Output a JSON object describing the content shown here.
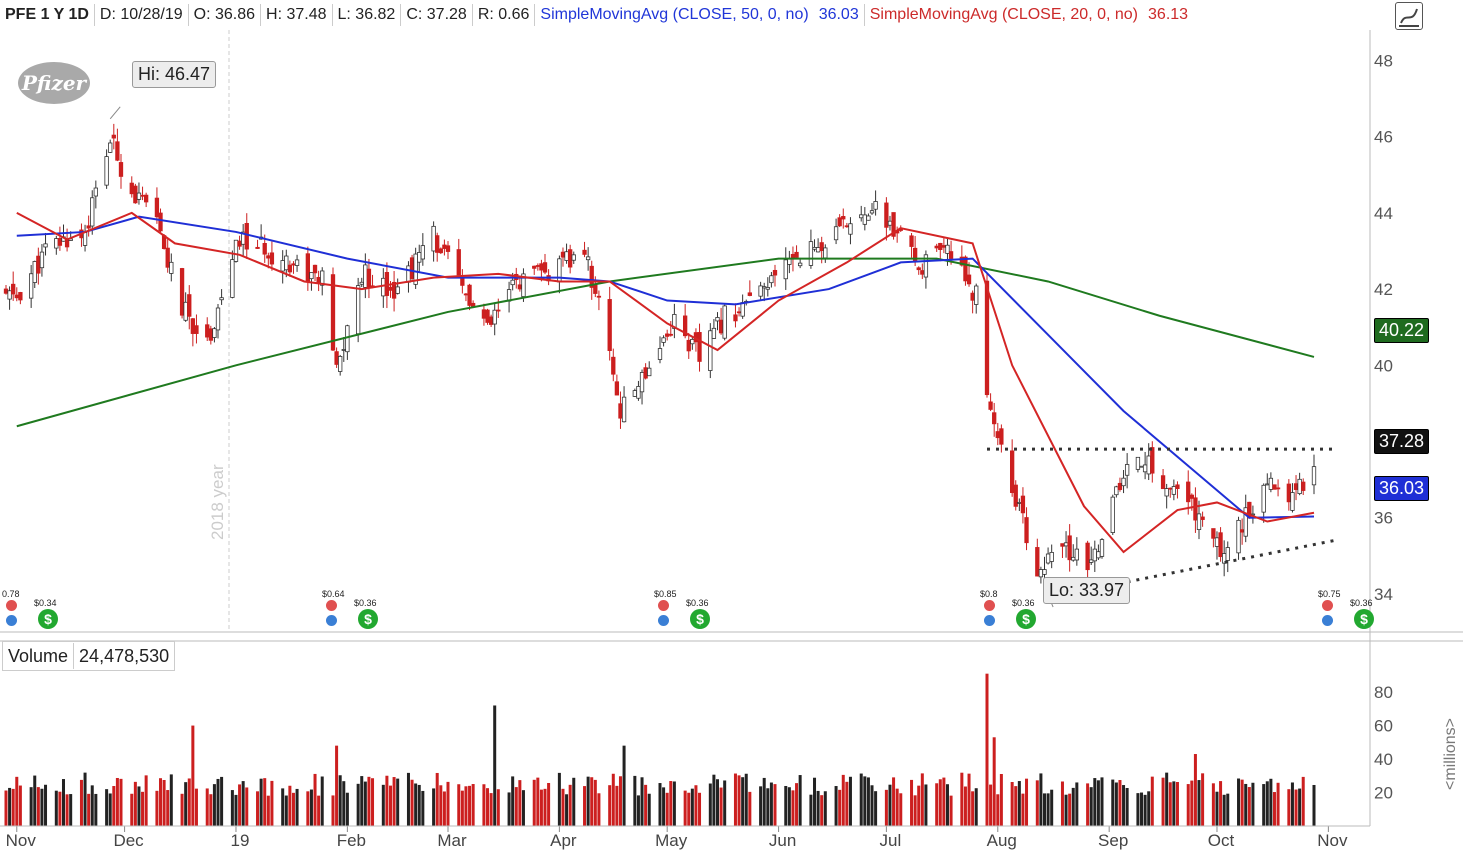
{
  "header": {
    "symbol": "PFE 1 Y 1D",
    "date": "D: 10/28/19",
    "open": "O: 36.86",
    "high": "H: 37.48",
    "low": "L: 36.82",
    "close": "C: 37.28",
    "range": "R: 0.66",
    "sma50_label": "SimpleMovingAvg (CLOSE, 50, 0, no)",
    "sma50_value": "36.03",
    "sma20_label": "SimpleMovingAvg (CLOSE, 20, 0, no)",
    "sma20_value": "36.13"
  },
  "logo_text": "Pfizer",
  "year_label": "2018 year",
  "callouts": {
    "high": "Hi: 46.47",
    "low": "Lo: 33.97"
  },
  "price_tags": {
    "sma200": "40.22",
    "last": "37.28",
    "sma50": "36.03"
  },
  "volume_panel": {
    "label": "Volume",
    "value": "24,478,530",
    "units": "<millions>"
  },
  "events": [
    {
      "top": "0.78",
      "bottom": "$0.34"
    },
    {
      "top": "$0.64",
      "bottom": "$0.36"
    },
    {
      "top": "$0.85",
      "bottom": "$0.36"
    },
    {
      "top": "$0.8",
      "bottom": "$0.36"
    },
    {
      "top": "$0.75",
      "bottom": "$0.36"
    }
  ],
  "colors": {
    "up": "#ffffff",
    "down": "#cc1f1f",
    "sma20": "#d42525",
    "sma50": "#1f2fd6",
    "sma200": "#1f7a1f",
    "volume": "#222222"
  },
  "chart_data": [
    {
      "type": "candlestick",
      "title": "PFE 1 Y 1D",
      "ylim": [
        33.0,
        48.8
      ],
      "y_ticks": [
        34,
        36,
        38,
        40,
        42,
        44,
        46,
        48
      ],
      "x_ticks": [
        "Nov",
        "Dec",
        "19",
        "Feb",
        "Mar",
        "Apr",
        "May",
        "Jun",
        "Jul",
        "Aug",
        "Sep",
        "Oct",
        "Nov"
      ],
      "close_path": [
        [
          "2018-11-01",
          41.8
        ],
        [
          "2018-11-10",
          43.1
        ],
        [
          "2018-11-20",
          43.5
        ],
        [
          "2018-11-27",
          45.9
        ],
        [
          "2018-12-03",
          44.6
        ],
        [
          "2018-12-10",
          43.7
        ],
        [
          "2018-12-17",
          41.5
        ],
        [
          "2018-12-24",
          40.6
        ],
        [
          "2019-01-02",
          43.3
        ],
        [
          "2019-01-15",
          42.8
        ],
        [
          "2019-01-25",
          42.2
        ],
        [
          "2019-01-29",
          39.8
        ],
        [
          "2019-02-05",
          42.4
        ],
        [
          "2019-02-15",
          42.0
        ],
        [
          "2019-02-25",
          43.4
        ],
        [
          "2019-03-05",
          42.0
        ],
        [
          "2019-03-12",
          40.9
        ],
        [
          "2019-03-20",
          42.2
        ],
        [
          "2019-03-29",
          42.4
        ],
        [
          "2019-04-08",
          43.0
        ],
        [
          "2019-04-15",
          40.5
        ],
        [
          "2019-04-18",
          38.7
        ],
        [
          "2019-04-25",
          39.9
        ],
        [
          "2019-05-03",
          41.2
        ],
        [
          "2019-05-10",
          40.2
        ],
        [
          "2019-05-17",
          41.3
        ],
        [
          "2019-05-28",
          41.9
        ],
        [
          "2019-06-05",
          42.9
        ],
        [
          "2019-06-15",
          43.2
        ],
        [
          "2019-06-25",
          44.2
        ],
        [
          "2019-07-01",
          43.8
        ],
        [
          "2019-07-10",
          42.6
        ],
        [
          "2019-07-20",
          43.0
        ],
        [
          "2019-07-26",
          41.8
        ],
        [
          "2019-07-29",
          39.3
        ],
        [
          "2019-08-05",
          36.8
        ],
        [
          "2019-08-12",
          34.6
        ],
        [
          "2019-08-20",
          35.2
        ],
        [
          "2019-08-26",
          34.6
        ],
        [
          "2019-09-03",
          36.6
        ],
        [
          "2019-09-09",
          37.7
        ],
        [
          "2019-09-16",
          36.9
        ],
        [
          "2019-09-24",
          36.3
        ],
        [
          "2019-10-02",
          35.1
        ],
        [
          "2019-10-09",
          36.0
        ],
        [
          "2019-10-16",
          36.8
        ],
        [
          "2019-10-22",
          36.7
        ],
        [
          "2019-10-28",
          37.28
        ]
      ],
      "sma20": [
        [
          "2018-11-01",
          44.0
        ],
        [
          "2018-11-15",
          43.3
        ],
        [
          "2018-12-03",
          44.0
        ],
        [
          "2018-12-15",
          43.2
        ],
        [
          "2019-01-02",
          42.9
        ],
        [
          "2019-01-20",
          42.2
        ],
        [
          "2019-02-05",
          42.0
        ],
        [
          "2019-02-25",
          42.3
        ],
        [
          "2019-03-15",
          42.4
        ],
        [
          "2019-04-01",
          42.2
        ],
        [
          "2019-04-15",
          42.2
        ],
        [
          "2019-05-01",
          41.1
        ],
        [
          "2019-05-15",
          40.4
        ],
        [
          "2019-06-01",
          41.7
        ],
        [
          "2019-06-20",
          42.7
        ],
        [
          "2019-07-05",
          43.6
        ],
        [
          "2019-07-25",
          43.2
        ],
        [
          "2019-08-05",
          40.0
        ],
        [
          "2019-08-25",
          36.3
        ],
        [
          "2019-09-05",
          35.1
        ],
        [
          "2019-09-20",
          36.2
        ],
        [
          "2019-10-01",
          36.4
        ],
        [
          "2019-10-15",
          35.9
        ],
        [
          "2019-10-28",
          36.13
        ]
      ],
      "sma50": [
        [
          "2018-11-01",
          43.4
        ],
        [
          "2018-11-20",
          43.5
        ],
        [
          "2018-12-05",
          43.9
        ],
        [
          "2019-01-01",
          43.5
        ],
        [
          "2019-02-01",
          42.8
        ],
        [
          "2019-03-01",
          42.3
        ],
        [
          "2019-04-01",
          42.3
        ],
        [
          "2019-04-15",
          42.2
        ],
        [
          "2019-05-01",
          41.7
        ],
        [
          "2019-05-20",
          41.6
        ],
        [
          "2019-06-15",
          42.0
        ],
        [
          "2019-07-05",
          42.7
        ],
        [
          "2019-07-25",
          42.8
        ],
        [
          "2019-08-15",
          40.8
        ],
        [
          "2019-09-05",
          38.8
        ],
        [
          "2019-09-25",
          37.2
        ],
        [
          "2019-10-10",
          36.0
        ],
        [
          "2019-10-28",
          36.03
        ]
      ],
      "sma200": [
        [
          "2018-11-01",
          38.4
        ],
        [
          "2019-01-01",
          40.0
        ],
        [
          "2019-03-01",
          41.4
        ],
        [
          "2019-04-15",
          42.2
        ],
        [
          "2019-06-01",
          42.8
        ],
        [
          "2019-07-15",
          42.8
        ],
        [
          "2019-08-15",
          42.2
        ],
        [
          "2019-09-15",
          41.3
        ],
        [
          "2019-10-28",
          40.22
        ]
      ],
      "annotations": [
        {
          "label": "Hi: 46.47",
          "x": "2018-11-27",
          "y": 46.47
        },
        {
          "label": "Lo: 33.97",
          "x": "2019-08-15",
          "y": 33.97
        }
      ],
      "resistance_line": [
        [
          "2019-07-29",
          37.8
        ],
        [
          "2019-10-28",
          37.8
        ]
      ],
      "support_line": [
        [
          "2019-08-15",
          33.9
        ],
        [
          "2019-10-28",
          35.4
        ]
      ]
    },
    {
      "type": "bar",
      "title": "Volume",
      "ylabel": "<millions>",
      "ylim": [
        0,
        92
      ],
      "y_ticks": [
        20,
        40,
        60,
        80
      ],
      "peaks": [
        [
          "2018-12-20",
          60
        ],
        [
          "2019-01-29",
          48
        ],
        [
          "2019-03-14",
          72
        ],
        [
          "2019-04-19",
          48
        ],
        [
          "2019-07-29",
          91
        ],
        [
          "2019-07-31",
          53
        ],
        [
          "2019-09-25",
          43
        ],
        [
          "2019-10-28",
          24.5
        ]
      ]
    }
  ]
}
